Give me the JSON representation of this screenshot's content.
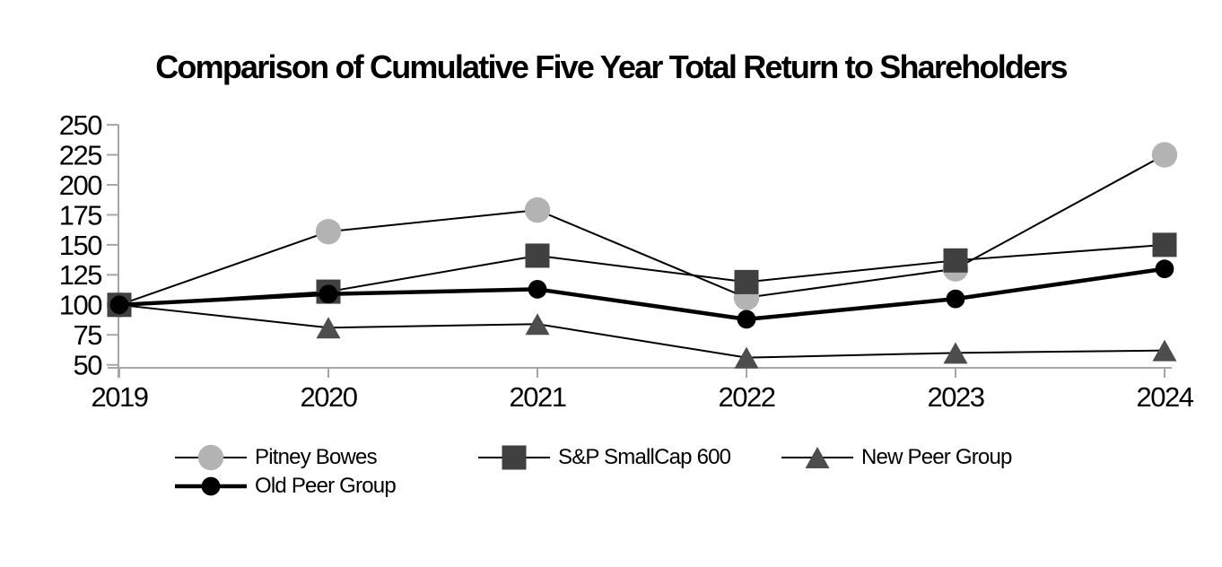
{
  "chart_data": {
    "type": "line",
    "title": "Comparison of Cumulative Five Year Total Return to Shareholders",
    "categories": [
      "2019",
      "2020",
      "2021",
      "2022",
      "2023",
      "2024"
    ],
    "y_ticks": [
      50,
      75,
      100,
      125,
      150,
      175,
      200,
      225,
      250
    ],
    "ylim": [
      50,
      250
    ],
    "grid": false,
    "legend_position": "bottom-left-two-rows",
    "axis_color": "#a6a6a6",
    "line_color": "#000000",
    "series": [
      {
        "name": "Pitney Bowes",
        "marker": "circle",
        "marker_color": "#b3b3b3",
        "line_width": 2,
        "values": [
          100,
          161,
          179,
          106,
          130,
          225
        ]
      },
      {
        "name": "S&P SmallCap 600",
        "marker": "square",
        "marker_color": "#404040",
        "line_width": 2,
        "values": [
          100,
          111,
          141,
          119,
          137,
          150
        ]
      },
      {
        "name": "New Peer Group",
        "marker": "triangle",
        "marker_color": "#4d4d4d",
        "line_width": 2,
        "values": [
          100,
          81,
          84,
          56,
          60,
          62
        ]
      },
      {
        "name": "Old Peer Group",
        "marker": "circle",
        "marker_color": "#000000",
        "line_width": 4.5,
        "values": [
          100,
          109,
          113,
          88,
          105,
          130
        ]
      }
    ]
  }
}
